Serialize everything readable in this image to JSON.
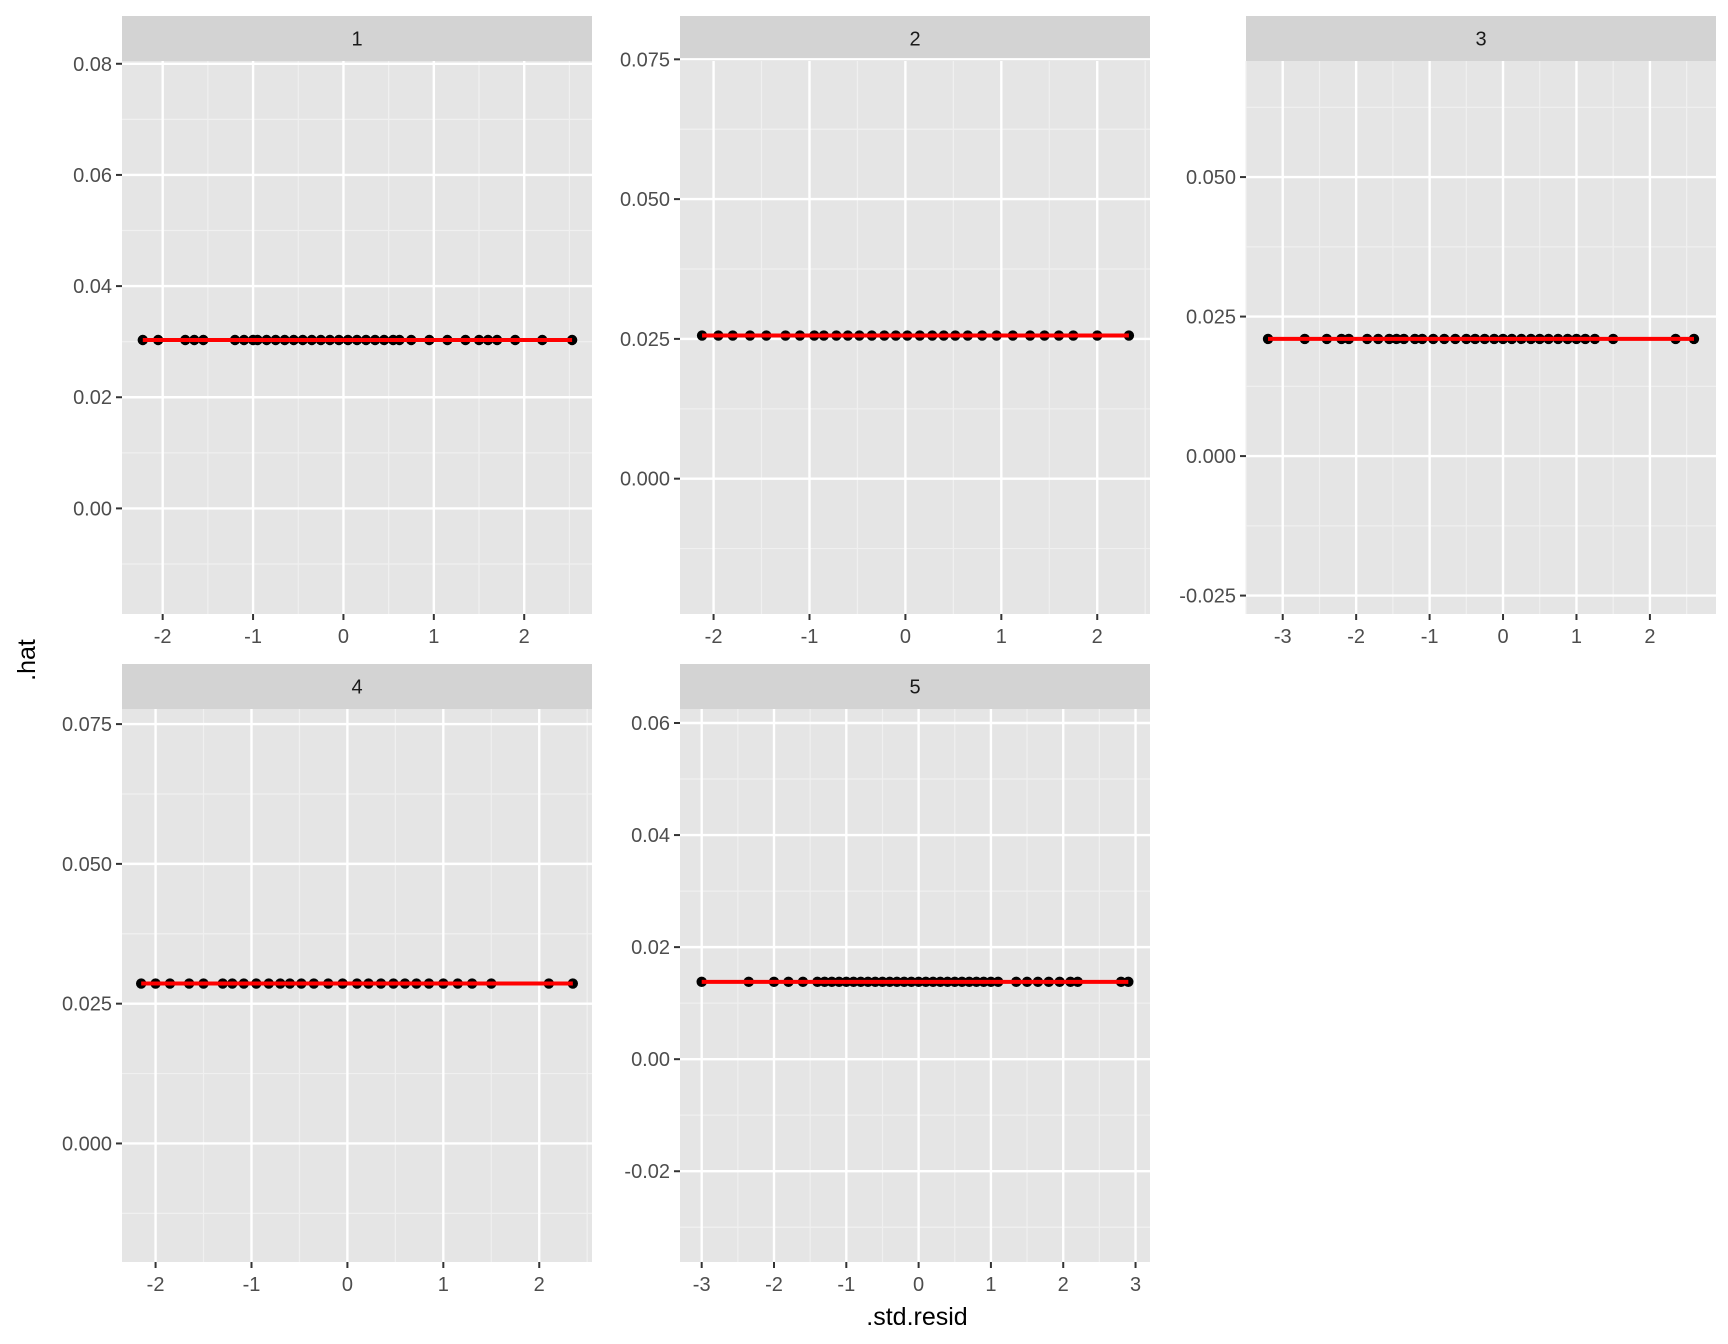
{
  "figure": {
    "xlabel": ".std.resid",
    "ylabel": ".hat"
  },
  "colors": {
    "panel_background": "#e5e5e5",
    "grid_major": "#ffffff",
    "grid_minor": "#f0f0f0",
    "strip_background": "#d3d3d3",
    "point": "#000000",
    "fit_line": "#ff0000"
  },
  "chart_data": [
    {
      "type": "scatter",
      "panel": "1",
      "x_ticks": [
        -2,
        -1,
        0,
        1,
        2
      ],
      "x_tick_labels": [
        "-2",
        "-1",
        "0",
        "1",
        "2"
      ],
      "xlim": [
        -2.45,
        2.75
      ],
      "y_ticks": [
        0.0,
        0.02,
        0.04,
        0.06,
        0.08
      ],
      "y_tick_labels": [
        "0.00",
        "0.02",
        "0.04",
        "0.06",
        "0.08"
      ],
      "ylim": [
        -0.019,
        0.0805
      ],
      "hat_value": 0.0303,
      "fit_line": {
        "x": [
          -2.22,
          2.53
        ],
        "y": [
          0.0303,
          0.0303
        ]
      },
      "x": [
        -2.22,
        -2.05,
        -1.75,
        -1.65,
        -1.55,
        -1.2,
        -1.1,
        -1.0,
        -0.95,
        -0.85,
        -0.75,
        -0.65,
        -0.55,
        -0.45,
        -0.35,
        -0.25,
        -0.15,
        -0.05,
        0.05,
        0.15,
        0.25,
        0.35,
        0.45,
        0.55,
        0.62,
        0.75,
        0.95,
        1.15,
        1.35,
        1.5,
        1.6,
        1.7,
        1.9,
        2.2,
        2.53
      ]
    },
    {
      "type": "scatter",
      "panel": "2",
      "x_ticks": [
        -2,
        -1,
        0,
        1,
        2
      ],
      "x_tick_labels": [
        "-2",
        "-1",
        "0",
        "1",
        "2"
      ],
      "xlim": [
        -2.35,
        2.55
      ],
      "y_ticks": [
        0.0,
        0.025,
        0.05,
        0.075
      ],
      "y_tick_labels": [
        "0.000",
        "0.025",
        "0.050",
        "0.075"
      ],
      "ylim": [
        -0.0242,
        0.0747
      ],
      "hat_value": 0.0256,
      "fit_line": {
        "x": [
          -2.12,
          2.33
        ],
        "y": [
          0.0256,
          0.0256
        ]
      },
      "x": [
        -2.12,
        -1.95,
        -1.8,
        -1.62,
        -1.45,
        -1.25,
        -1.1,
        -0.95,
        -0.85,
        -0.72,
        -0.6,
        -0.48,
        -0.35,
        -0.22,
        -0.1,
        0.02,
        0.15,
        0.28,
        0.4,
        0.52,
        0.65,
        0.8,
        0.95,
        1.12,
        1.3,
        1.45,
        1.6,
        1.75,
        2.0,
        2.33
      ]
    },
    {
      "type": "scatter",
      "panel": "3",
      "x_ticks": [
        -3,
        -2,
        -1,
        0,
        1,
        2
      ],
      "x_tick_labels": [
        "-3",
        "-2",
        "-1",
        "0",
        "1",
        "2"
      ],
      "xlim": [
        -3.5,
        2.9
      ],
      "y_ticks": [
        -0.025,
        0.0,
        0.025,
        0.05
      ],
      "y_tick_labels": [
        "-0.025",
        "0.000",
        "0.025",
        "0.050"
      ],
      "ylim": [
        -0.0283,
        0.0708
      ],
      "hat_value": 0.021,
      "fit_line": {
        "x": [
          -3.2,
          2.6
        ],
        "y": [
          0.021,
          0.021
        ]
      },
      "x": [
        -3.2,
        -2.7,
        -2.4,
        -2.2,
        -2.1,
        -1.85,
        -1.7,
        -1.55,
        -1.45,
        -1.35,
        -1.2,
        -1.1,
        -0.95,
        -0.8,
        -0.65,
        -0.5,
        -0.38,
        -0.25,
        -0.12,
        0.0,
        0.12,
        0.25,
        0.38,
        0.5,
        0.62,
        0.75,
        0.88,
        1.0,
        1.12,
        1.25,
        1.5,
        2.35,
        2.6
      ]
    },
    {
      "type": "scatter",
      "panel": "4",
      "x_ticks": [
        -2,
        -1,
        0,
        1,
        2
      ],
      "x_tick_labels": [
        "-2",
        "-1",
        "0",
        "1",
        "2"
      ],
      "xlim": [
        -2.35,
        2.55
      ],
      "y_ticks": [
        0.0,
        0.025,
        0.05,
        0.075
      ],
      "y_tick_labels": [
        "0.000",
        "0.025",
        "0.050",
        "0.075"
      ],
      "ylim": [
        -0.0212,
        0.0777
      ],
      "hat_value": 0.0286,
      "fit_line": {
        "x": [
          -2.15,
          2.35
        ],
        "y": [
          0.0286,
          0.0286
        ]
      },
      "x": [
        -2.15,
        -2.0,
        -1.85,
        -1.65,
        -1.5,
        -1.3,
        -1.2,
        -1.08,
        -0.95,
        -0.82,
        -0.7,
        -0.6,
        -0.48,
        -0.35,
        -0.2,
        -0.05,
        0.1,
        0.22,
        0.35,
        0.48,
        0.6,
        0.72,
        0.85,
        1.0,
        1.15,
        1.3,
        1.5,
        2.1,
        2.35
      ]
    },
    {
      "type": "scatter",
      "panel": "5",
      "x_ticks": [
        -3,
        -2,
        -1,
        0,
        1,
        2,
        3
      ],
      "x_tick_labels": [
        "-3",
        "-2",
        "-1",
        "0",
        "1",
        "2",
        "3"
      ],
      "xlim": [
        -3.3,
        3.2
      ],
      "y_ticks": [
        -0.02,
        0.0,
        0.02,
        0.04,
        0.06
      ],
      "y_tick_labels": [
        "-0.02",
        "0.00",
        "0.02",
        "0.04",
        "0.06"
      ],
      "ylim": [
        -0.0362,
        0.0625
      ],
      "hat_value": 0.0138,
      "fit_line": {
        "x": [
          -3.0,
          2.9
        ],
        "y": [
          0.0138,
          0.0138
        ]
      },
      "x": [
        -3.0,
        -2.35,
        -2.0,
        -1.8,
        -1.6,
        -1.4,
        -1.3,
        -1.2,
        -1.1,
        -1.0,
        -0.9,
        -0.8,
        -0.7,
        -0.6,
        -0.5,
        -0.4,
        -0.3,
        -0.2,
        -0.1,
        0.0,
        0.1,
        0.2,
        0.3,
        0.4,
        0.5,
        0.6,
        0.7,
        0.8,
        0.9,
        1.0,
        1.1,
        1.35,
        1.5,
        1.65,
        1.8,
        1.95,
        2.1,
        2.2,
        2.8,
        2.9
      ]
    }
  ]
}
